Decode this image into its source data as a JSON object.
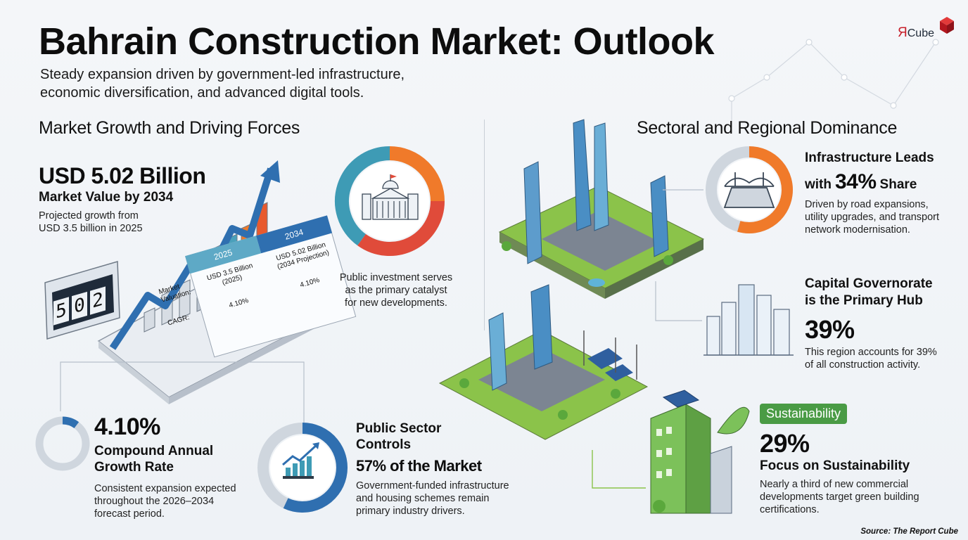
{
  "header": {
    "title": "Bahrain Construction Market: Outlook",
    "subtitle": "Steady expansion driven by government-led infrastructure,\neconomic diversification, and advanced digital tools.",
    "logo_text_r": "Я",
    "logo_text_cube": "Cube"
  },
  "left": {
    "section_title": "Market Growth and Driving Forces",
    "market_value": "USD 5.02 Billion",
    "market_value_label": "Market Value by 2034",
    "market_value_desc": "Projected growth from\nUSD 3.5 billion in 2025",
    "odometer_digits": [
      "5",
      "0",
      "2"
    ],
    "table": {
      "col_2025": "2025",
      "col_2034": "2034",
      "row_valuation": "Market\nValuation:",
      "row_cagr": "CAGR:",
      "val_2025": "USD 3.5 Billion\n(2025)",
      "val_2034": "USD 5.02 Billion\n(2034 Projection)",
      "cagr_2025": "4.10%",
      "cagr_2034": "4.10%"
    },
    "public_investment_desc": "Public investment serves\nas the primary catalyst\nfor new developments.",
    "cagr_value": "4.10%",
    "cagr_label": "Compound Annual\nGrowth Rate",
    "cagr_desc": "Consistent expansion expected\nthroughout the 2026–2034\nforecast period.",
    "cagr_fraction": 0.041,
    "public_sector_title": "Public Sector\nControls",
    "public_sector_value": "57% of the Market",
    "public_sector_desc": "Government-funded infrastructure\nand housing schemes remain\nprimary industry drivers.",
    "public_sector_fraction": 0.57
  },
  "right": {
    "section_title": "Sectoral and Regional Dominance",
    "infra_title": "Infrastructure Leads",
    "infra_with": "with",
    "infra_value": "34%",
    "infra_share": "Share",
    "infra_desc": "Driven by road expansions,\nutility upgrades, and transport\nnetwork modernisation.",
    "infra_fraction": 0.34,
    "capital_title": "Capital Governorate\nis the Primary Hub",
    "capital_value": "39%",
    "capital_desc": "This region accounts for 39%\nof all construction activity.",
    "sustain_badge": "Sustainability",
    "sustain_value": "29%",
    "sustain_label": "Focus on Sustainability",
    "sustain_desc": "Nearly a third of new commercial\ndevelopments target green building\ncertifications."
  },
  "footer": {
    "source": "Source: The Report Cube"
  },
  "colors": {
    "blue": "#2f6fb0",
    "orange": "#f07a2a",
    "red": "#e04b3a",
    "teal": "#3e9bb5",
    "gray_ring": "#cfd6de",
    "green": "#4a9b45",
    "brand_red": "#c8202b"
  }
}
